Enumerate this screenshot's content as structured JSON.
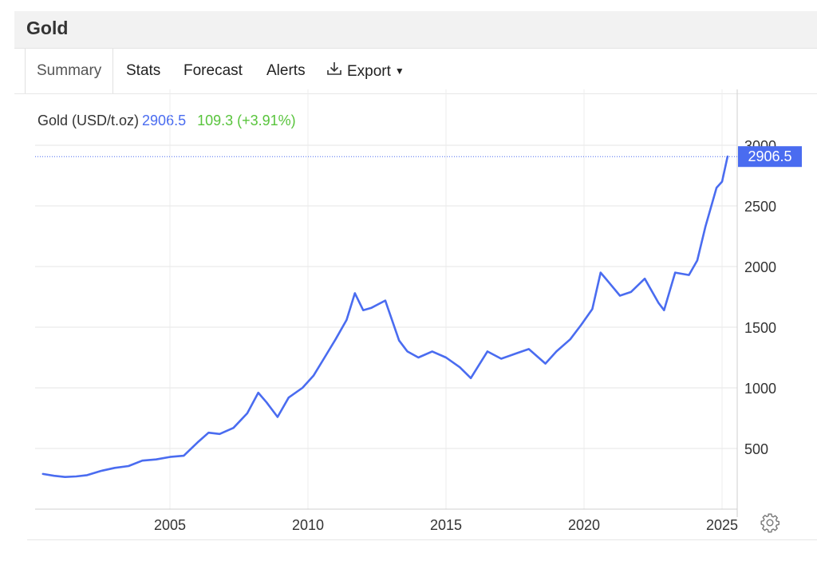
{
  "header": {
    "title": "Gold"
  },
  "tabs": [
    {
      "label": "Summary"
    },
    {
      "label": "Stats"
    },
    {
      "label": "Forecast"
    },
    {
      "label": "Alerts"
    },
    {
      "label": "Export"
    }
  ],
  "legend": {
    "label": "Gold (USD/t.oz)",
    "value": "2906.5",
    "change": "109.3 (+3.91%)"
  },
  "last_value_label": "2906.5",
  "colors": {
    "line": "#4a6cf0",
    "positive": "#58c43c",
    "label_bg": "#4a6cf0"
  },
  "icons": {
    "export": "download-icon",
    "settings": "gear-icon"
  },
  "chart_data": {
    "type": "line",
    "title": "Gold",
    "ylabel": "",
    "xlabel": "",
    "ylim": [
      0,
      3000
    ],
    "xlim": [
      2000.4,
      2025.9
    ],
    "grid": true,
    "y_ticks": [
      500,
      1000,
      1500,
      2000,
      2500,
      3000
    ],
    "x_ticks": [
      2005,
      2010,
      2015,
      2020,
      2025
    ],
    "series": [
      {
        "name": "Gold (USD/t.oz)",
        "x": [
          2000.4,
          2000.8,
          2001.2,
          2001.6,
          2002.0,
          2002.5,
          2003.0,
          2003.5,
          2004.0,
          2004.5,
          2005.0,
          2005.5,
          2006.0,
          2006.4,
          2006.8,
          2007.3,
          2007.8,
          2008.2,
          2008.5,
          2008.9,
          2009.3,
          2009.8,
          2010.2,
          2010.6,
          2011.0,
          2011.4,
          2011.7,
          2012.0,
          2012.3,
          2012.8,
          2013.3,
          2013.6,
          2014.0,
          2014.5,
          2015.0,
          2015.5,
          2015.9,
          2016.5,
          2017.0,
          2017.5,
          2018.0,
          2018.6,
          2019.0,
          2019.5,
          2019.9,
          2020.3,
          2020.6,
          2020.9,
          2021.3,
          2021.7,
          2022.2,
          2022.7,
          2022.9,
          2023.3,
          2023.8,
          2024.1,
          2024.4,
          2024.8,
          2025.0,
          2025.2
        ],
        "values": [
          290,
          275,
          265,
          270,
          280,
          315,
          340,
          355,
          400,
          410,
          430,
          440,
          550,
          630,
          620,
          670,
          790,
          960,
          880,
          760,
          920,
          1000,
          1100,
          1250,
          1400,
          1560,
          1780,
          1640,
          1660,
          1720,
          1390,
          1300,
          1250,
          1300,
          1250,
          1170,
          1080,
          1300,
          1240,
          1280,
          1320,
          1200,
          1300,
          1400,
          1520,
          1650,
          1950,
          1870,
          1760,
          1790,
          1900,
          1700,
          1640,
          1950,
          1930,
          2050,
          2330,
          2650,
          2700,
          2906.5
        ]
      }
    ]
  }
}
